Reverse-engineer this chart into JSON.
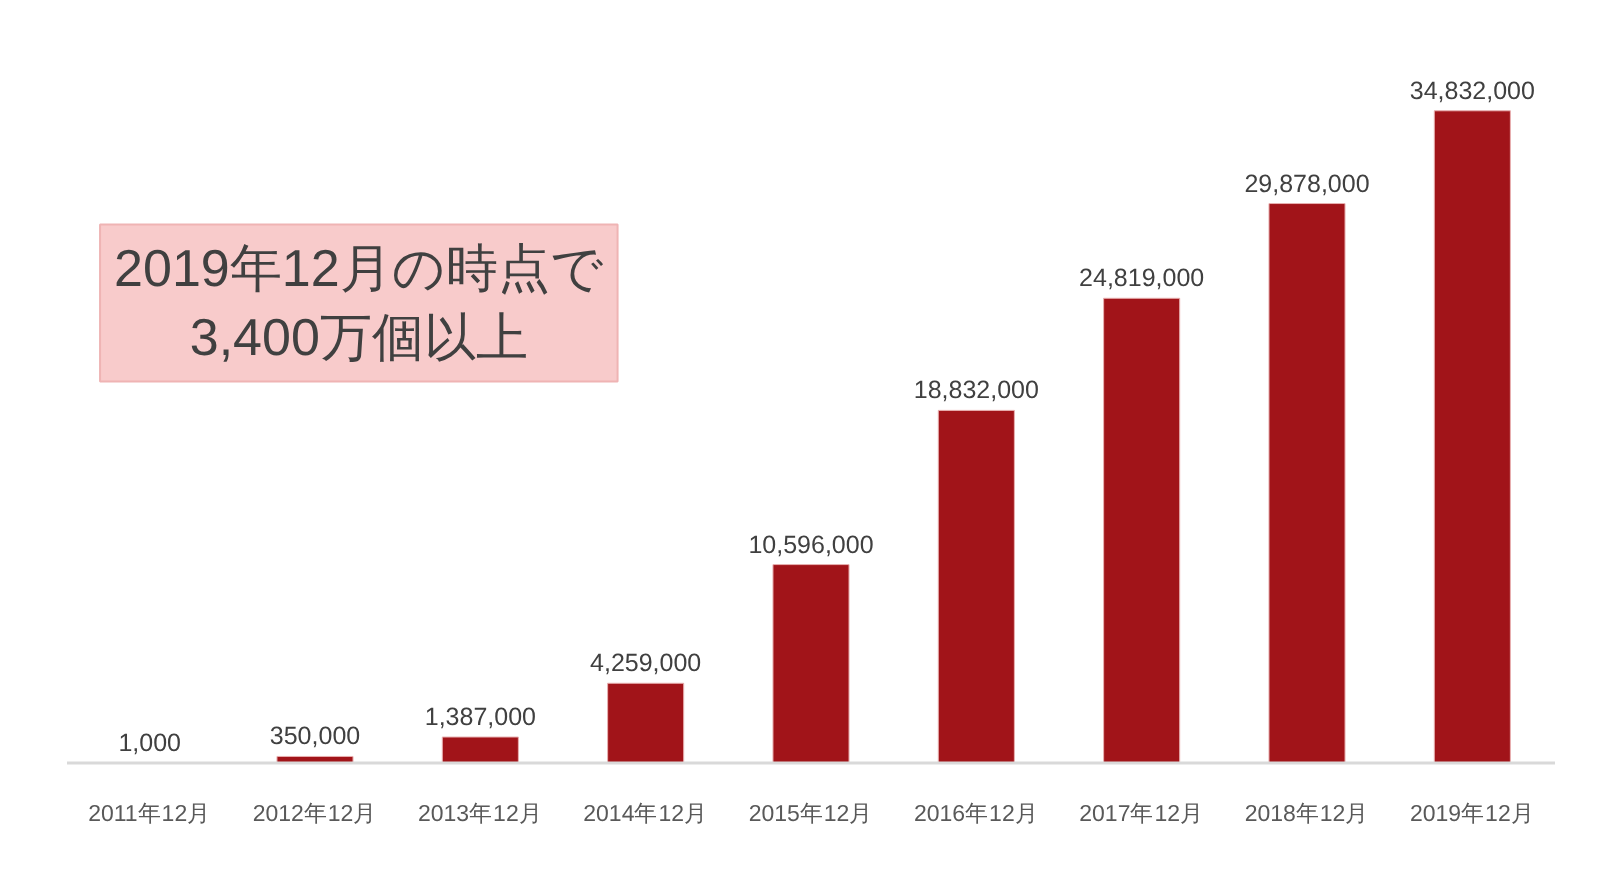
{
  "chart_data": {
    "type": "bar",
    "categories": [
      "2011年12月",
      "2012年12月",
      "2013年12月",
      "2014年12月",
      "2015年12月",
      "2016年12月",
      "2017年12月",
      "2018年12月",
      "2019年12月"
    ],
    "values": [
      1000,
      350000,
      1387000,
      4259000,
      10596000,
      18832000,
      24819000,
      29878000,
      34832000
    ],
    "value_labels": [
      "1,000",
      "350,000",
      "1,387,000",
      "4,259,000",
      "10,596,000",
      "18,832,000",
      "24,819,000",
      "29,878,000",
      "34,832,000"
    ],
    "color": "#a11419",
    "tick_labels": "x",
    "annotations": [
      "2019年12月の時点で\n3,400万個以上"
    ]
  }
}
